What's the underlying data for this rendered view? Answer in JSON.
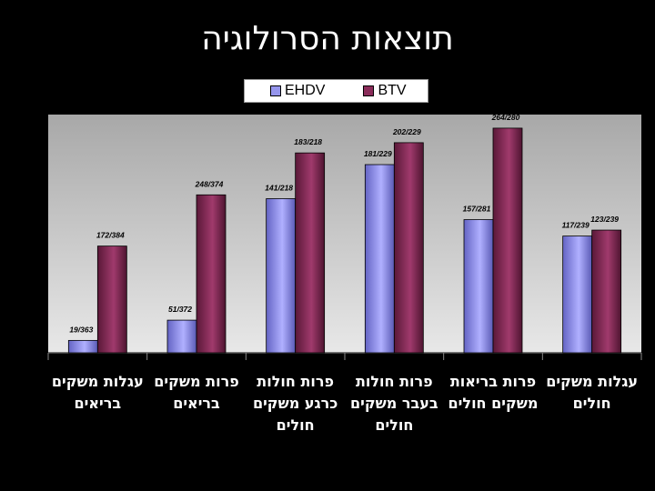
{
  "title": "תוצאות הסרולוגיה",
  "legend": [
    {
      "name": "EHDV",
      "color": "#8f8fe8"
    },
    {
      "name": "BTV",
      "color": "#8a2c5a"
    }
  ],
  "chart_data": {
    "type": "bar",
    "title": "תוצאות הסרולוגיה",
    "categories": [
      "עגלות משקים בריאים",
      "פרות משקים בריאים",
      "פרות חולות כרגע משקים חולים",
      "פרות חולות בעבר משקים חולים",
      "פרות בריאות משקים חולים",
      "עגלות משקים חולים"
    ],
    "series": [
      {
        "name": "EHDV",
        "values": [
          5.2,
          13.7,
          64.7,
          79.0,
          55.9,
          49.0
        ],
        "labels": [
          "19/363",
          "51/372",
          "141/218",
          "181/229",
          "157/281",
          "117/239"
        ]
      },
      {
        "name": "BTV",
        "values": [
          44.8,
          66.3,
          83.9,
          88.2,
          94.3,
          51.5
        ],
        "labels": [
          "172/384",
          "248/374",
          "183/218",
          "202/229",
          "264/280",
          "123/239"
        ]
      }
    ],
    "ylim": [
      0,
      100
    ],
    "grid": false,
    "legend_position": "top"
  }
}
